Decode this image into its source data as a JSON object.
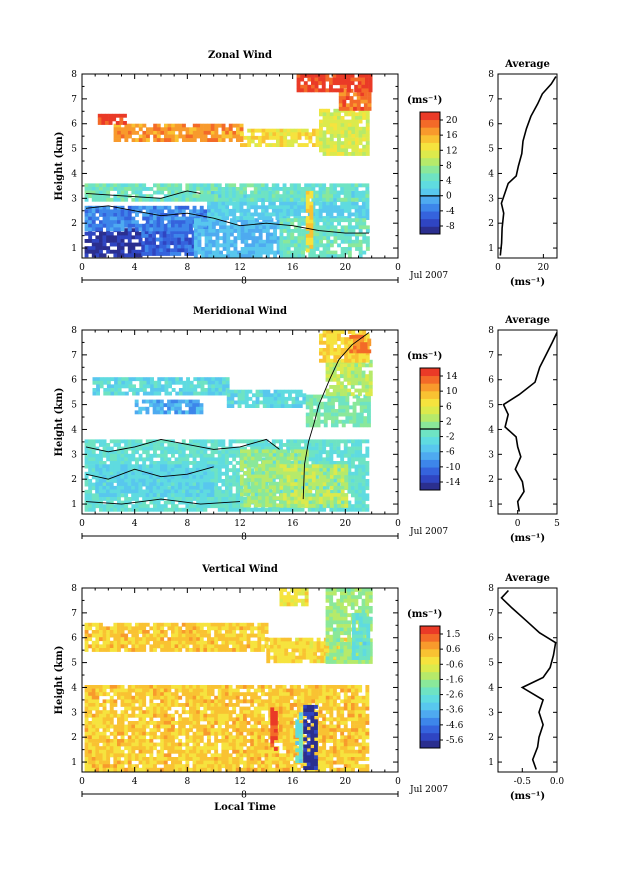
{
  "chart_data": [
    {
      "type": "heatmap",
      "title": "Zonal Wind",
      "ylabel": "Height (km)",
      "x_ticks": [
        "0",
        "4",
        "8",
        "12",
        "16",
        "20",
        "0"
      ],
      "y_ticks": [
        "1",
        "2",
        "3",
        "4",
        "5",
        "6",
        "7",
        "8"
      ],
      "xlim": [
        0,
        24
      ],
      "ylim": [
        0.6,
        8
      ],
      "date_axis": {
        "day_label": "8",
        "month_label": "Jul 2007"
      },
      "colorbar": {
        "unit_label": "(ms⁻¹)",
        "tick_labels": [
          "20",
          "16",
          "12",
          "8",
          "4",
          "0",
          "-4",
          "-8"
        ],
        "range": [
          -10,
          22
        ],
        "zero_line": 0,
        "colors": [
          "#2b2f8f",
          "#2f45c2",
          "#3563dd",
          "#3d86ea",
          "#4eaaf0",
          "#58c7ee",
          "#5fdbe0",
          "#6ee3c3",
          "#8ae89a",
          "#b6ea6a",
          "#dcea4c",
          "#f6e33e",
          "#f9c232",
          "#f89a2c",
          "#f36a28",
          "#ea3a27"
        ]
      },
      "regions": [
        {
          "t0": 0.2,
          "t1": 4.5,
          "h0": 0.75,
          "h1": 1.8,
          "v": -8
        },
        {
          "t0": 4.5,
          "t1": 8.5,
          "h0": 0.75,
          "h1": 2.0,
          "v": -5
        },
        {
          "t0": 0.2,
          "t1": 9.5,
          "h0": 1.8,
          "h1": 2.7,
          "v": -3
        },
        {
          "t0": 8.5,
          "t1": 15,
          "h0": 0.75,
          "h1": 2.2,
          "v": 0
        },
        {
          "t0": 9.5,
          "t1": 21.8,
          "h0": 2.2,
          "h1": 3.3,
          "v": 2
        },
        {
          "t0": 15,
          "t1": 21.8,
          "h0": 0.75,
          "h1": 2.2,
          "v": 5
        },
        {
          "t0": 0.2,
          "t1": 21.8,
          "h0": 3.0,
          "h1": 3.6,
          "v": 5
        },
        {
          "t0": 2.4,
          "t1": 12,
          "h0": 5.4,
          "h1": 6.0,
          "v": 17
        },
        {
          "t0": 12,
          "t1": 18,
          "h0": 5.2,
          "h1": 5.8,
          "v": 13
        },
        {
          "t0": 1.2,
          "t1": 3.2,
          "h0": 6.0,
          "h1": 6.4,
          "v": 21
        },
        {
          "t0": 18,
          "t1": 21.8,
          "h0": 4.8,
          "h1": 6.6,
          "v": 11
        },
        {
          "t0": 19.5,
          "t1": 21.8,
          "h0": 6.6,
          "h1": 7.4,
          "v": 19
        },
        {
          "t0": 16.3,
          "t1": 21.8,
          "h0": 7.4,
          "h1": 8.0,
          "v": 21
        },
        {
          "t0": 17.0,
          "t1": 17.5,
          "h0": 0.9,
          "h1": 3.3,
          "v": 14
        }
      ],
      "contours": [
        {
          "level": 0,
          "points": [
            [
              0.3,
              2.6
            ],
            [
              2,
              2.7
            ],
            [
              4,
              2.5
            ],
            [
              6,
              2.3
            ],
            [
              8,
              2.4
            ],
            [
              10,
              2.2
            ],
            [
              12,
              1.9
            ],
            [
              14,
              2.0
            ],
            [
              16,
              1.9
            ],
            [
              18,
              1.7
            ],
            [
              20,
              1.6
            ],
            [
              21.8,
              1.6
            ]
          ]
        },
        {
          "level": 0,
          "points": [
            [
              0.3,
              3.2
            ],
            [
              3,
              3.1
            ],
            [
              6,
              3.0
            ],
            [
              8,
              3.3
            ],
            [
              9,
              3.2
            ]
          ]
        }
      ],
      "profile": {
        "title": "Average",
        "xlabel": "(ms⁻¹)",
        "x_ticks": [
          "0",
          "20"
        ],
        "xlim": [
          0,
          26
        ],
        "y_ticks": [
          "1",
          "2",
          "3",
          "4",
          "5",
          "6",
          "7",
          "8"
        ],
        "points": [
          [
            1.0,
            0.7
          ],
          [
            1.6,
            1.2
          ],
          [
            1.8,
            1.8
          ],
          [
            2.5,
            2.4
          ],
          [
            1.5,
            2.8
          ],
          [
            3.0,
            3.2
          ],
          [
            4.5,
            3.6
          ],
          [
            8.0,
            3.9
          ],
          [
            9.0,
            4.3
          ],
          [
            10.5,
            4.8
          ],
          [
            11.0,
            5.3
          ],
          [
            12.5,
            5.8
          ],
          [
            14.5,
            6.3
          ],
          [
            17.5,
            6.8
          ],
          [
            19.5,
            7.2
          ],
          [
            23.5,
            7.6
          ],
          [
            25.5,
            7.9
          ]
        ]
      }
    },
    {
      "type": "heatmap",
      "title": "Meridional Wind",
      "ylabel": "Height (km)",
      "x_ticks": [
        "0",
        "4",
        "8",
        "12",
        "16",
        "20",
        "0"
      ],
      "y_ticks": [
        "1",
        "2",
        "3",
        "4",
        "5",
        "6",
        "7",
        "8"
      ],
      "xlim": [
        0,
        24
      ],
      "ylim": [
        0.6,
        8
      ],
      "date_axis": {
        "day_label": "8",
        "month_label": "Jul 2007"
      },
      "colorbar": {
        "unit_label": "(ms⁻¹)",
        "tick_labels": [
          "14",
          "10",
          "6",
          "2",
          "-2",
          "-6",
          "-10",
          "-14"
        ],
        "range": [
          -16,
          16
        ],
        "zero_line": 0,
        "colors": [
          "#2b2f8f",
          "#2f45c2",
          "#3563dd",
          "#3d86ea",
          "#4eaaf0",
          "#58c7ee",
          "#5fdbe0",
          "#6ee3c3",
          "#8ae89a",
          "#b6ea6a",
          "#dcea4c",
          "#f6e33e",
          "#f9c232",
          "#f89a2c",
          "#f36a28",
          "#ea3a27"
        ]
      },
      "regions": [
        {
          "t0": 0.2,
          "t1": 21.8,
          "h0": 0.75,
          "h1": 3.6,
          "v": -2
        },
        {
          "t0": 1,
          "t1": 10,
          "h0": 1.4,
          "h1": 2.6,
          "v": -4
        },
        {
          "t0": 12,
          "t1": 17,
          "h0": 1.0,
          "h1": 3.2,
          "v": 2
        },
        {
          "t0": 15,
          "t1": 20,
          "h0": 1.0,
          "h1": 2.6,
          "v": 3
        },
        {
          "t0": 0.8,
          "t1": 11,
          "h0": 5.5,
          "h1": 6.1,
          "v": -3
        },
        {
          "t0": 11,
          "t1": 17,
          "h0": 5.0,
          "h1": 5.6,
          "v": -3
        },
        {
          "t0": 4,
          "t1": 9,
          "h0": 4.7,
          "h1": 5.2,
          "v": -7
        },
        {
          "t0": 17,
          "t1": 21.8,
          "h0": 4.2,
          "h1": 5.4,
          "v": 0
        },
        {
          "t0": 18.5,
          "t1": 21.8,
          "h0": 5.4,
          "h1": 6.8,
          "v": 3
        },
        {
          "t0": 18,
          "t1": 21.8,
          "h0": 6.8,
          "h1": 8.0,
          "v": 8
        },
        {
          "t0": 20.3,
          "t1": 21.8,
          "h0": 7.2,
          "h1": 7.8,
          "v": 12
        }
      ],
      "contours": [
        {
          "level": 0,
          "points": [
            [
              0.3,
              3.3
            ],
            [
              2,
              3.1
            ],
            [
              4,
              3.3
            ],
            [
              6,
              3.6
            ],
            [
              8,
              3.4
            ],
            [
              10,
              3.2
            ],
            [
              12,
              3.3
            ],
            [
              14,
              3.6
            ],
            [
              15,
              3.2
            ]
          ]
        },
        {
          "level": 0,
          "points": [
            [
              0.3,
              2.2
            ],
            [
              2,
              2.0
            ],
            [
              4,
              2.4
            ],
            [
              6,
              2.1
            ],
            [
              8,
              2.2
            ],
            [
              10,
              2.5
            ]
          ]
        },
        {
          "level": 0,
          "points": [
            [
              0.3,
              1.1
            ],
            [
              3,
              1.0
            ],
            [
              6,
              1.2
            ],
            [
              9,
              1.0
            ],
            [
              12,
              1.1
            ]
          ]
        },
        {
          "level": 0,
          "points": [
            [
              16.8,
              1.2
            ],
            [
              16.9,
              2.6
            ],
            [
              17.2,
              3.5
            ],
            [
              17.6,
              4.2
            ],
            [
              18,
              5.0
            ],
            [
              18.8,
              6.0
            ],
            [
              19.5,
              6.8
            ],
            [
              20.5,
              7.4
            ],
            [
              21.8,
              7.9
            ]
          ]
        }
      ],
      "profile": {
        "title": "Average",
        "xlabel": "(ms⁻¹)",
        "x_ticks": [
          "0",
          "5"
        ],
        "xlim": [
          -2.5,
          5
        ],
        "y_ticks": [
          "1",
          "2",
          "3",
          "4",
          "5",
          "6",
          "7",
          "8"
        ],
        "points": [
          [
            0.2,
            0.7
          ],
          [
            0.0,
            1.1
          ],
          [
            0.8,
            1.5
          ],
          [
            0.6,
            1.9
          ],
          [
            -0.3,
            2.4
          ],
          [
            0.4,
            2.9
          ],
          [
            0.0,
            3.3
          ],
          [
            -0.2,
            3.7
          ],
          [
            -1.6,
            4.1
          ],
          [
            -1.2,
            4.6
          ],
          [
            -1.8,
            5.0
          ],
          [
            0.2,
            5.4
          ],
          [
            2.2,
            5.9
          ],
          [
            2.8,
            6.5
          ],
          [
            3.6,
            7.0
          ],
          [
            4.4,
            7.5
          ],
          [
            5.0,
            7.9
          ]
        ]
      }
    },
    {
      "type": "heatmap",
      "title": "Vertical Wind",
      "ylabel": "Height (km)",
      "xlabel": "Local Time",
      "x_ticks": [
        "0",
        "4",
        "8",
        "12",
        "16",
        "20",
        "0"
      ],
      "y_ticks": [
        "1",
        "2",
        "3",
        "4",
        "5",
        "6",
        "7",
        "8"
      ],
      "xlim": [
        0,
        24
      ],
      "ylim": [
        0.6,
        8
      ],
      "date_axis": {
        "day_label": "8",
        "month_label": "Jul 2007"
      },
      "colorbar": {
        "unit_label": "(ms⁻¹)",
        "tick_labels": [
          "1.5",
          "0.6",
          "-0.6",
          "-1.6",
          "-2.6",
          "-3.6",
          "-4.6",
          "-5.6"
        ],
        "range": [
          -6.1,
          2.0
        ],
        "colors": [
          "#2b2f8f",
          "#2f45c2",
          "#3563dd",
          "#3d86ea",
          "#4eaaf0",
          "#58c7ee",
          "#5fdbe0",
          "#6ee3c3",
          "#8ae89a",
          "#b6ea6a",
          "#dcea4c",
          "#f6e33e",
          "#f9c232",
          "#f89a2c",
          "#f36a28",
          "#ea3a27"
        ]
      },
      "regions": [
        {
          "t0": 0.2,
          "t1": 21.8,
          "h0": 0.75,
          "h1": 4.1,
          "v": 0.1
        },
        {
          "t0": 0.2,
          "t1": 14,
          "h0": 5.5,
          "h1": 6.6,
          "v": 0.1
        },
        {
          "t0": 14,
          "t1": 21.8,
          "h0": 5.0,
          "h1": 6.0,
          "v": -0.1
        },
        {
          "t0": 15,
          "t1": 17,
          "h0": 7.3,
          "h1": 8.0,
          "v": -0.4
        },
        {
          "t0": 18.5,
          "t1": 21.8,
          "h0": 5.0,
          "h1": 8.0,
          "v": -1.6
        },
        {
          "t0": 20.5,
          "t1": 21.8,
          "h0": 5.2,
          "h1": 7.0,
          "v": -2.6
        },
        {
          "t0": 16.8,
          "t1": 17.7,
          "h0": 0.7,
          "h1": 3.3,
          "v": -5.8
        },
        {
          "t0": 16.2,
          "t1": 16.6,
          "h0": 1.0,
          "h1": 3.0,
          "v": -2.8
        },
        {
          "t0": 14.3,
          "t1": 14.7,
          "h0": 1.5,
          "h1": 3.2,
          "v": 1.6
        }
      ],
      "contours": [],
      "profile": {
        "title": "Average",
        "xlabel": "(ms⁻¹)",
        "x_ticks": [
          "-0.5",
          "0.0"
        ],
        "xlim": [
          -0.85,
          0.0
        ],
        "y_ticks": [
          "1",
          "2",
          "3",
          "4",
          "5",
          "6",
          "7",
          "8"
        ],
        "points": [
          [
            -0.3,
            0.7
          ],
          [
            -0.35,
            1.1
          ],
          [
            -0.28,
            1.6
          ],
          [
            -0.26,
            2.0
          ],
          [
            -0.2,
            2.5
          ],
          [
            -0.26,
            3.0
          ],
          [
            -0.2,
            3.5
          ],
          [
            -0.5,
            4.0
          ],
          [
            -0.2,
            4.4
          ],
          [
            -0.1,
            4.8
          ],
          [
            -0.05,
            5.3
          ],
          [
            -0.02,
            5.8
          ],
          [
            -0.25,
            6.2
          ],
          [
            -0.45,
            6.7
          ],
          [
            -0.65,
            7.2
          ],
          [
            -0.8,
            7.6
          ],
          [
            -0.7,
            7.9
          ]
        ]
      }
    }
  ]
}
